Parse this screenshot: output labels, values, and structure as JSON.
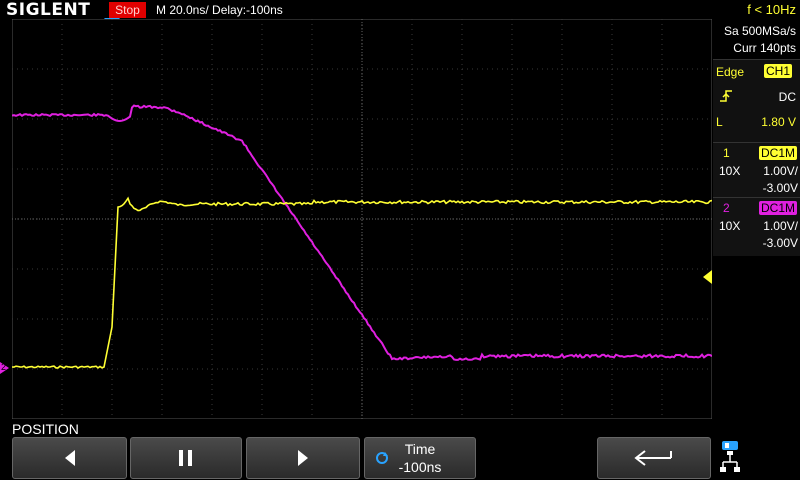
{
  "header": {
    "logo": "SIGLENT",
    "run_state": "Stop",
    "timebase": "M 20.0ns/",
    "delay": "Delay:-100ns",
    "trigger_freq": "f < 10Hz"
  },
  "acquisition": {
    "sample_rate": "Sa 500MSa/s",
    "current_points": "Curr 140pts"
  },
  "trigger": {
    "type": "Edge",
    "source": "CH1",
    "coupling": "DC",
    "level_label": "L",
    "level": "1.80 V",
    "slope_icon": "rising-edge-icon"
  },
  "channels": [
    {
      "number": "1",
      "coupling": "DC1M",
      "probe": "10X",
      "scale": "1.00V/",
      "offset": "-3.00V",
      "color": "#ffff33"
    },
    {
      "number": "2",
      "coupling": "DC1M",
      "probe": "10X",
      "scale": "1.00V/",
      "offset": "-3.00V",
      "color": "#e020e0"
    }
  ],
  "markers": {
    "ch2_ground_label": "2"
  },
  "softkeys": {
    "menu_title": "POSITION",
    "left_icon": "arrow-left-icon",
    "pause_icon": "pause-icon",
    "right_icon": "arrow-right-icon",
    "time_label": "Time",
    "time_value": "-100ns",
    "back_icon": "return-icon"
  },
  "colors": {
    "ch1": "#ffff33",
    "ch2": "#e020e0",
    "stop": "#e00000",
    "trigger_marker": "#29a3ff"
  }
}
